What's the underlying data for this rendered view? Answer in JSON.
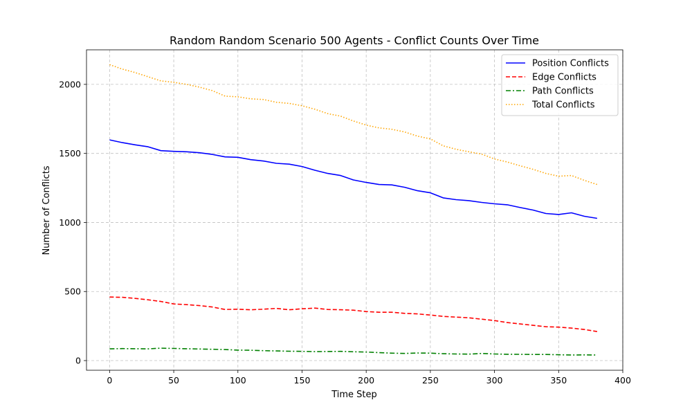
{
  "chart_data": {
    "type": "line",
    "title": "Random Random Scenario 500 Agents - Conflict Counts Over Time",
    "xlabel": "Time Step",
    "ylabel": "Number of Conflicts",
    "xlim": [
      -18,
      400
    ],
    "ylim": [
      -70,
      2250
    ],
    "xticks": [
      0,
      50,
      100,
      150,
      200,
      250,
      300,
      350,
      400
    ],
    "yticks": [
      0,
      500,
      1000,
      1500,
      2000
    ],
    "grid": true,
    "legend_position": "top-right",
    "x": [
      0,
      10,
      20,
      30,
      40,
      50,
      60,
      70,
      80,
      90,
      100,
      110,
      120,
      130,
      140,
      150,
      160,
      170,
      180,
      190,
      200,
      210,
      220,
      230,
      240,
      250,
      260,
      270,
      280,
      290,
      300,
      310,
      320,
      330,
      340,
      350,
      360,
      370,
      380
    ],
    "series": [
      {
        "name": "Position Conflicts",
        "color": "#0000ff",
        "style": "solid",
        "values": [
          1598,
          1578,
          1562,
          1548,
          1520,
          1515,
          1512,
          1505,
          1493,
          1475,
          1472,
          1455,
          1445,
          1428,
          1422,
          1405,
          1378,
          1355,
          1340,
          1308,
          1290,
          1275,
          1272,
          1255,
          1230,
          1215,
          1178,
          1165,
          1158,
          1145,
          1135,
          1128,
          1108,
          1090,
          1065,
          1058,
          1070,
          1045,
          1030
        ]
      },
      {
        "name": "Edge Conflicts",
        "color": "#ff0000",
        "style": "dashed",
        "values": [
          460,
          458,
          450,
          440,
          428,
          410,
          405,
          398,
          388,
          370,
          372,
          368,
          372,
          378,
          368,
          375,
          380,
          370,
          368,
          365,
          355,
          350,
          350,
          342,
          338,
          330,
          320,
          315,
          310,
          300,
          290,
          275,
          265,
          255,
          245,
          242,
          235,
          225,
          210
        ]
      },
      {
        "name": "Path Conflicts",
        "color": "#008000",
        "style": "dashdot",
        "values": [
          85,
          87,
          86,
          85,
          90,
          88,
          86,
          84,
          82,
          80,
          76,
          75,
          72,
          70,
          68,
          67,
          65,
          66,
          67,
          64,
          62,
          58,
          54,
          52,
          55,
          54,
          50,
          48,
          47,
          52,
          48,
          46,
          45,
          44,
          44,
          42,
          40,
          41,
          40
        ]
      },
      {
        "name": "Total Conflicts",
        "color": "#ffa500",
        "style": "dotted",
        "values": [
          2143,
          2110,
          2085,
          2055,
          2025,
          2015,
          2000,
          1980,
          1955,
          1915,
          1910,
          1895,
          1890,
          1870,
          1862,
          1845,
          1820,
          1788,
          1770,
          1735,
          1705,
          1685,
          1675,
          1655,
          1625,
          1605,
          1555,
          1530,
          1512,
          1495,
          1460,
          1438,
          1410,
          1385,
          1355,
          1335,
          1340,
          1305,
          1275
        ]
      }
    ]
  }
}
